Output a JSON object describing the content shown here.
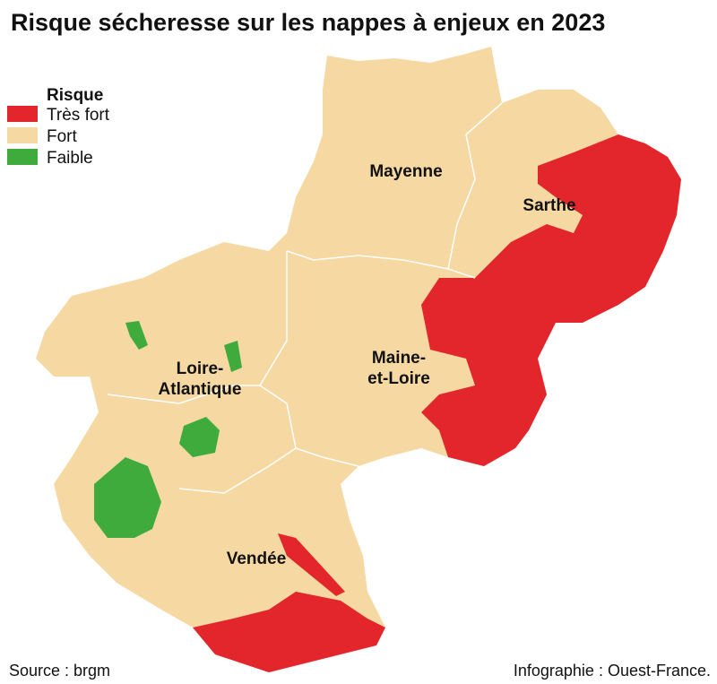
{
  "title": "Risque sécheresse sur les nappes à enjeux en 2023",
  "legend": {
    "title": "Risque",
    "items": [
      {
        "name": "Très fort",
        "color": "#e3262b"
      },
      {
        "name": "Fort",
        "color": "#f6d9a2"
      },
      {
        "name": "Faible",
        "color": "#3fab3c"
      }
    ]
  },
  "regions": [
    {
      "lines": [
        "Mayenne"
      ]
    },
    {
      "lines": [
        "Sarthe"
      ]
    },
    {
      "lines": [
        "Loire-",
        "Atlantique"
      ]
    },
    {
      "lines": [
        "Maine-",
        "et-Loire"
      ]
    },
    {
      "lines": [
        "Vendée"
      ]
    }
  ],
  "source": "Source : brgm",
  "credit": "Infographie : Ouest-France."
}
